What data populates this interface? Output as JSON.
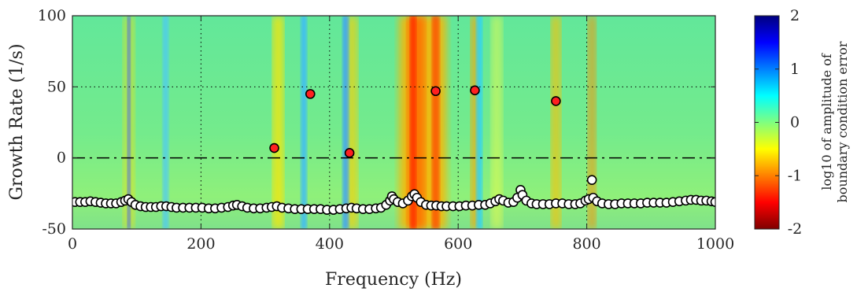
{
  "chart_data": {
    "type": "scatter",
    "title": "",
    "xlabel": "Frequency (Hz)",
    "ylabel": "Growth Rate (1/s)",
    "xlim": [
      0,
      1000
    ],
    "ylim": [
      -50,
      100
    ],
    "xticks": [
      0,
      200,
      400,
      600,
      800,
      1000
    ],
    "yticks": [
      -50,
      0,
      50,
      100
    ],
    "xtick_labels": [
      "0",
      "200",
      "400",
      "600",
      "800",
      "1000"
    ],
    "ytick_labels": [
      "-50",
      "0",
      "50",
      "100"
    ],
    "grid": "dotted lines at x=200,400,600,800 and y=50",
    "reference_line": {
      "y": 0,
      "style": "dash-dot"
    },
    "background": "filled contour map of log10 amplitude of boundary condition error",
    "colorbar": {
      "label_line1": "log10 of amplitude of",
      "label_line2": "boundary condition error",
      "range": [
        -2,
        2
      ],
      "ticks": [
        2,
        1,
        0,
        -1,
        -2
      ],
      "tick_labels": [
        "2",
        "1",
        "0",
        "-1",
        "-2"
      ],
      "colormap": "jet"
    },
    "series": [
      {
        "marker": "red filled circle",
        "color": "#ff2020",
        "points": [
          {
            "x": 314,
            "y": 7
          },
          {
            "x": 370,
            "y": 45
          },
          {
            "x": 431,
            "y": 3.5
          },
          {
            "x": 565,
            "y": 47
          },
          {
            "x": 626,
            "y": 47.5
          },
          {
            "x": 752,
            "y": 40
          }
        ]
      },
      {
        "marker": "white filled circle",
        "color": "#ffffff",
        "points": [
          {
            "x": 4,
            "y": -31
          },
          {
            "x": 12,
            "y": -31
          },
          {
            "x": 20,
            "y": -31
          },
          {
            "x": 28,
            "y": -30.5
          },
          {
            "x": 36,
            "y": -31
          },
          {
            "x": 44,
            "y": -31.5
          },
          {
            "x": 52,
            "y": -32
          },
          {
            "x": 60,
            "y": -32
          },
          {
            "x": 68,
            "y": -32
          },
          {
            "x": 76,
            "y": -31
          },
          {
            "x": 82,
            "y": -30
          },
          {
            "x": 87,
            "y": -29
          },
          {
            "x": 92,
            "y": -31
          },
          {
            "x": 98,
            "y": -33
          },
          {
            "x": 106,
            "y": -34
          },
          {
            "x": 114,
            "y": -34.5
          },
          {
            "x": 122,
            "y": -34.5
          },
          {
            "x": 130,
            "y": -34.5
          },
          {
            "x": 138,
            "y": -34
          },
          {
            "x": 146,
            "y": -34
          },
          {
            "x": 154,
            "y": -34.5
          },
          {
            "x": 162,
            "y": -35
          },
          {
            "x": 172,
            "y": -35
          },
          {
            "x": 182,
            "y": -35
          },
          {
            "x": 192,
            "y": -35
          },
          {
            "x": 202,
            "y": -35
          },
          {
            "x": 212,
            "y": -35.5
          },
          {
            "x": 222,
            "y": -35.5
          },
          {
            "x": 232,
            "y": -35
          },
          {
            "x": 242,
            "y": -34.5
          },
          {
            "x": 250,
            "y": -33.5
          },
          {
            "x": 256,
            "y": -33
          },
          {
            "x": 264,
            "y": -34
          },
          {
            "x": 272,
            "y": -35
          },
          {
            "x": 282,
            "y": -35.5
          },
          {
            "x": 292,
            "y": -35.5
          },
          {
            "x": 302,
            "y": -35
          },
          {
            "x": 310,
            "y": -34.5
          },
          {
            "x": 318,
            "y": -34
          },
          {
            "x": 326,
            "y": -35
          },
          {
            "x": 336,
            "y": -35.5
          },
          {
            "x": 346,
            "y": -36
          },
          {
            "x": 356,
            "y": -36
          },
          {
            "x": 366,
            "y": -36
          },
          {
            "x": 376,
            "y": -36
          },
          {
            "x": 386,
            "y": -36
          },
          {
            "x": 396,
            "y": -36.5
          },
          {
            "x": 406,
            "y": -36.5
          },
          {
            "x": 416,
            "y": -36
          },
          {
            "x": 426,
            "y": -35.5
          },
          {
            "x": 434,
            "y": -35
          },
          {
            "x": 442,
            "y": -35.5
          },
          {
            "x": 452,
            "y": -36
          },
          {
            "x": 462,
            "y": -36
          },
          {
            "x": 472,
            "y": -35.5
          },
          {
            "x": 480,
            "y": -35
          },
          {
            "x": 488,
            "y": -33
          },
          {
            "x": 494,
            "y": -30
          },
          {
            "x": 497,
            "y": -27
          },
          {
            "x": 500,
            "y": -29
          },
          {
            "x": 506,
            "y": -31
          },
          {
            "x": 514,
            "y": -32
          },
          {
            "x": 522,
            "y": -30
          },
          {
            "x": 528,
            "y": -27
          },
          {
            "x": 532,
            "y": -25.5
          },
          {
            "x": 536,
            "y": -28
          },
          {
            "x": 542,
            "y": -31
          },
          {
            "x": 550,
            "y": -33
          },
          {
            "x": 558,
            "y": -33.5
          },
          {
            "x": 566,
            "y": -33.5
          },
          {
            "x": 574,
            "y": -34
          },
          {
            "x": 582,
            "y": -34
          },
          {
            "x": 592,
            "y": -34
          },
          {
            "x": 602,
            "y": -34
          },
          {
            "x": 612,
            "y": -33.5
          },
          {
            "x": 622,
            "y": -33.5
          },
          {
            "x": 632,
            "y": -33
          },
          {
            "x": 642,
            "y": -33
          },
          {
            "x": 650,
            "y": -32
          },
          {
            "x": 658,
            "y": -30.5
          },
          {
            "x": 664,
            "y": -29
          },
          {
            "x": 670,
            "y": -30
          },
          {
            "x": 678,
            "y": -31.5
          },
          {
            "x": 686,
            "y": -31
          },
          {
            "x": 692,
            "y": -28
          },
          {
            "x": 697,
            "y": -22.5
          },
          {
            "x": 700,
            "y": -26
          },
          {
            "x": 706,
            "y": -30
          },
          {
            "x": 714,
            "y": -32
          },
          {
            "x": 722,
            "y": -32.5
          },
          {
            "x": 732,
            "y": -32.5
          },
          {
            "x": 742,
            "y": -32.5
          },
          {
            "x": 752,
            "y": -32
          },
          {
            "x": 762,
            "y": -32
          },
          {
            "x": 772,
            "y": -32.5
          },
          {
            "x": 782,
            "y": -32.5
          },
          {
            "x": 790,
            "y": -32
          },
          {
            "x": 798,
            "y": -30
          },
          {
            "x": 803,
            "y": -29
          },
          {
            "x": 808,
            "y": -15.5
          },
          {
            "x": 810,
            "y": -28
          },
          {
            "x": 816,
            "y": -30.5
          },
          {
            "x": 824,
            "y": -32
          },
          {
            "x": 834,
            "y": -32.5
          },
          {
            "x": 844,
            "y": -32.5
          },
          {
            "x": 854,
            "y": -32
          },
          {
            "x": 864,
            "y": -32
          },
          {
            "x": 874,
            "y": -32
          },
          {
            "x": 884,
            "y": -32
          },
          {
            "x": 894,
            "y": -31.5
          },
          {
            "x": 904,
            "y": -31.5
          },
          {
            "x": 914,
            "y": -31.5
          },
          {
            "x": 924,
            "y": -31.5
          },
          {
            "x": 934,
            "y": -31
          },
          {
            "x": 944,
            "y": -30.5
          },
          {
            "x": 954,
            "y": -30
          },
          {
            "x": 962,
            "y": -29.5
          },
          {
            "x": 970,
            "y": -29.5
          },
          {
            "x": 978,
            "y": -30
          },
          {
            "x": 986,
            "y": -30
          },
          {
            "x": 994,
            "y": -30.5
          },
          {
            "x": 1000,
            "y": -31
          }
        ]
      }
    ]
  }
}
